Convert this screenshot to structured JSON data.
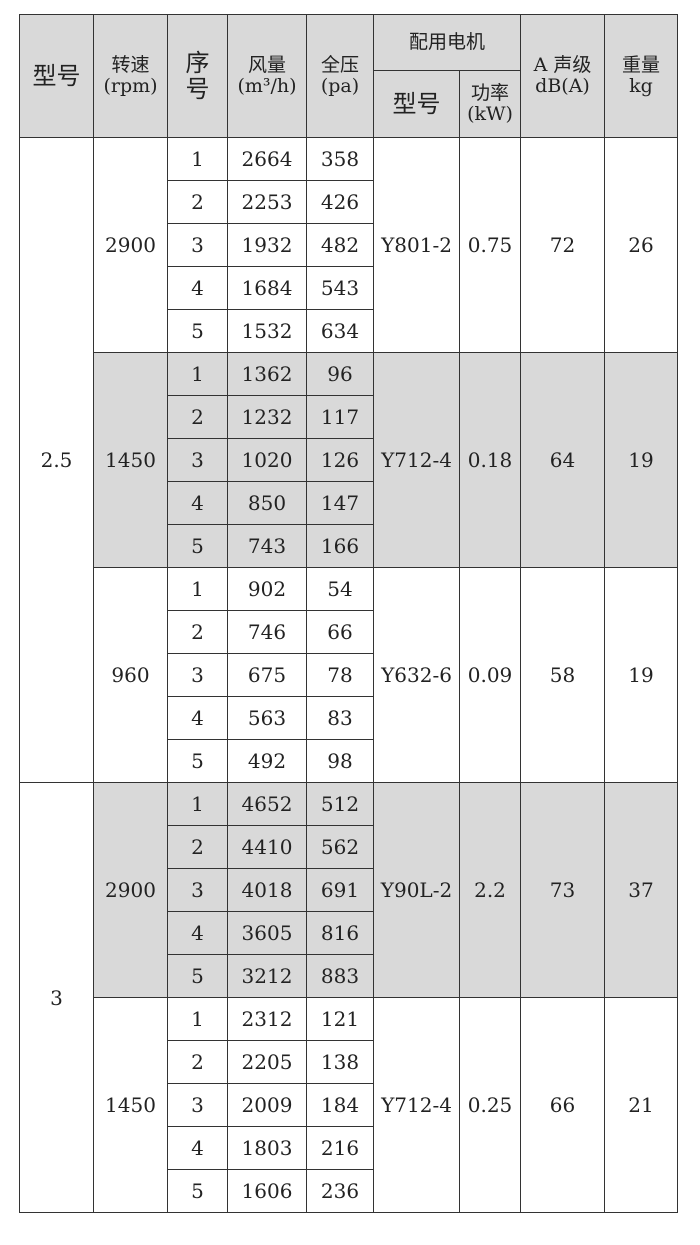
{
  "header": {
    "model": "型号",
    "speed": "转速",
    "speed_unit": "(rpm)",
    "seq": "序号",
    "flow": "风量",
    "flow_unit": "(m³/h)",
    "pressure": "全压",
    "pressure_unit": "(pa)",
    "motor": "配用电机",
    "motor_model": "型号",
    "power": "功率",
    "power_unit": "(kW)",
    "noise": "A 声级",
    "noise_unit": "dB(A)",
    "weight": "重量",
    "weight_unit": "kg"
  },
  "fill_color": "#d9d9d9",
  "groups": [
    {
      "model": "2.5",
      "speeds": [
        {
          "speed": "2900",
          "shaded": false,
          "motor": "Y801-2",
          "power": "0.75",
          "noise": "72",
          "weight": "26",
          "rows": [
            [
              "1",
              "2664",
              "358"
            ],
            [
              "2",
              "2253",
              "426"
            ],
            [
              "3",
              "1932",
              "482"
            ],
            [
              "4",
              "1684",
              "543"
            ],
            [
              "5",
              "1532",
              "634"
            ]
          ]
        },
        {
          "speed": "1450",
          "shaded": true,
          "motor": "Y712-4",
          "power": "0.18",
          "noise": "64",
          "weight": "19",
          "rows": [
            [
              "1",
              "1362",
              "96"
            ],
            [
              "2",
              "1232",
              "117"
            ],
            [
              "3",
              "1020",
              "126"
            ],
            [
              "4",
              "850",
              "147"
            ],
            [
              "5",
              "743",
              "166"
            ]
          ]
        },
        {
          "speed": "960",
          "shaded": false,
          "motor": "Y632-6",
          "power": "0.09",
          "noise": "58",
          "weight": "19",
          "rows": [
            [
              "1",
              "902",
              "54"
            ],
            [
              "2",
              "746",
              "66"
            ],
            [
              "3",
              "675",
              "78"
            ],
            [
              "4",
              "563",
              "83"
            ],
            [
              "5",
              "492",
              "98"
            ]
          ]
        }
      ]
    },
    {
      "model": "3",
      "speeds": [
        {
          "speed": "2900",
          "shaded": true,
          "motor": "Y90L-2",
          "power": "2.2",
          "noise": "73",
          "weight": "37",
          "rows": [
            [
              "1",
              "4652",
              "512"
            ],
            [
              "2",
              "4410",
              "562"
            ],
            [
              "3",
              "4018",
              "691"
            ],
            [
              "4",
              "3605",
              "816"
            ],
            [
              "5",
              "3212",
              "883"
            ]
          ]
        },
        {
          "speed": "1450",
          "shaded": false,
          "motor": "Y712-4",
          "power": "0.25",
          "noise": "66",
          "weight": "21",
          "rows": [
            [
              "1",
              "2312",
              "121"
            ],
            [
              "2",
              "2205",
              "138"
            ],
            [
              "3",
              "2009",
              "184"
            ],
            [
              "4",
              "1803",
              "216"
            ],
            [
              "5",
              "1606",
              "236"
            ]
          ]
        }
      ]
    }
  ]
}
